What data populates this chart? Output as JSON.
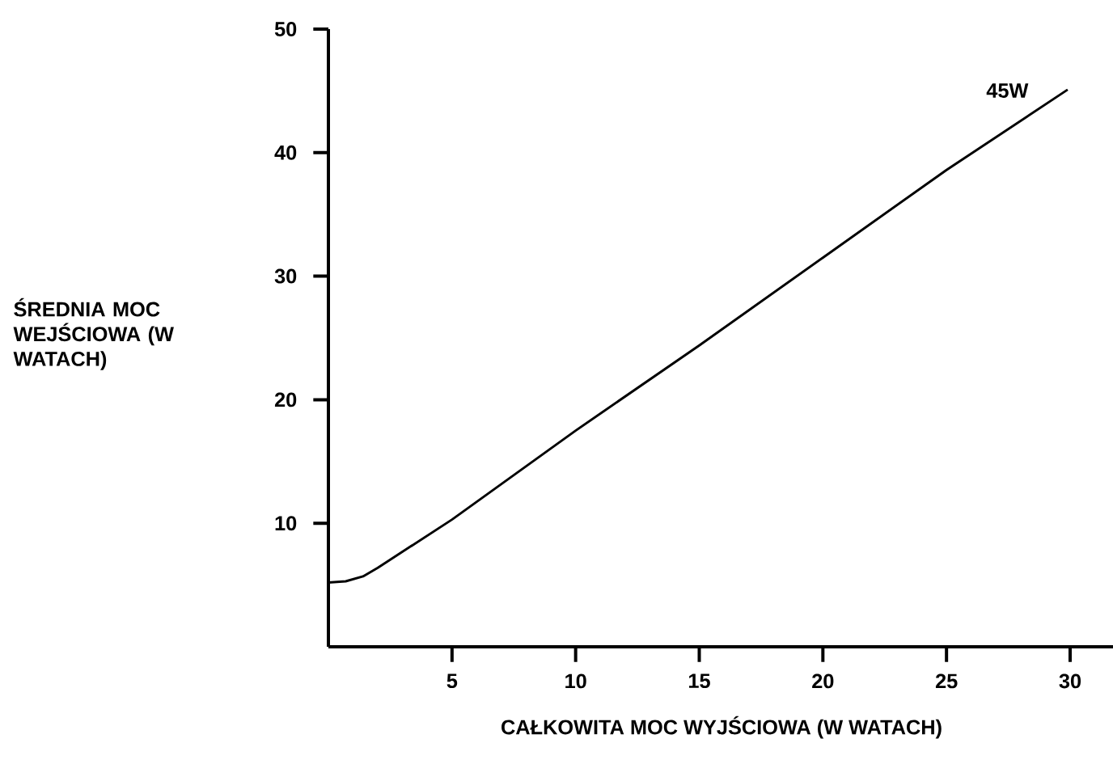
{
  "chart_data": {
    "type": "line",
    "xlabel": "CAŁKOWITA MOC WYJŚCIOWA (W WATACH)",
    "ylabel": "ŚREDNIA MOC WEJŚCIOWA (W WATACH)",
    "xlim": [
      0,
      31.8
    ],
    "ylim": [
      0,
      50
    ],
    "xticks": [
      5,
      10,
      15,
      20,
      25,
      30
    ],
    "yticks": [
      10,
      20,
      30,
      40,
      50
    ],
    "grid": false,
    "legend": false,
    "marker": "none",
    "line_style": "solid",
    "series": [
      {
        "name": "45W",
        "color": "#000000",
        "x": [
          0,
          0.7,
          1.4,
          2,
          5,
          10,
          15,
          20,
          25,
          29.9
        ],
        "values": [
          5.2,
          5.3,
          5.7,
          6.4,
          10.3,
          17.5,
          24.4,
          31.5,
          38.6,
          45.1
        ]
      }
    ]
  }
}
